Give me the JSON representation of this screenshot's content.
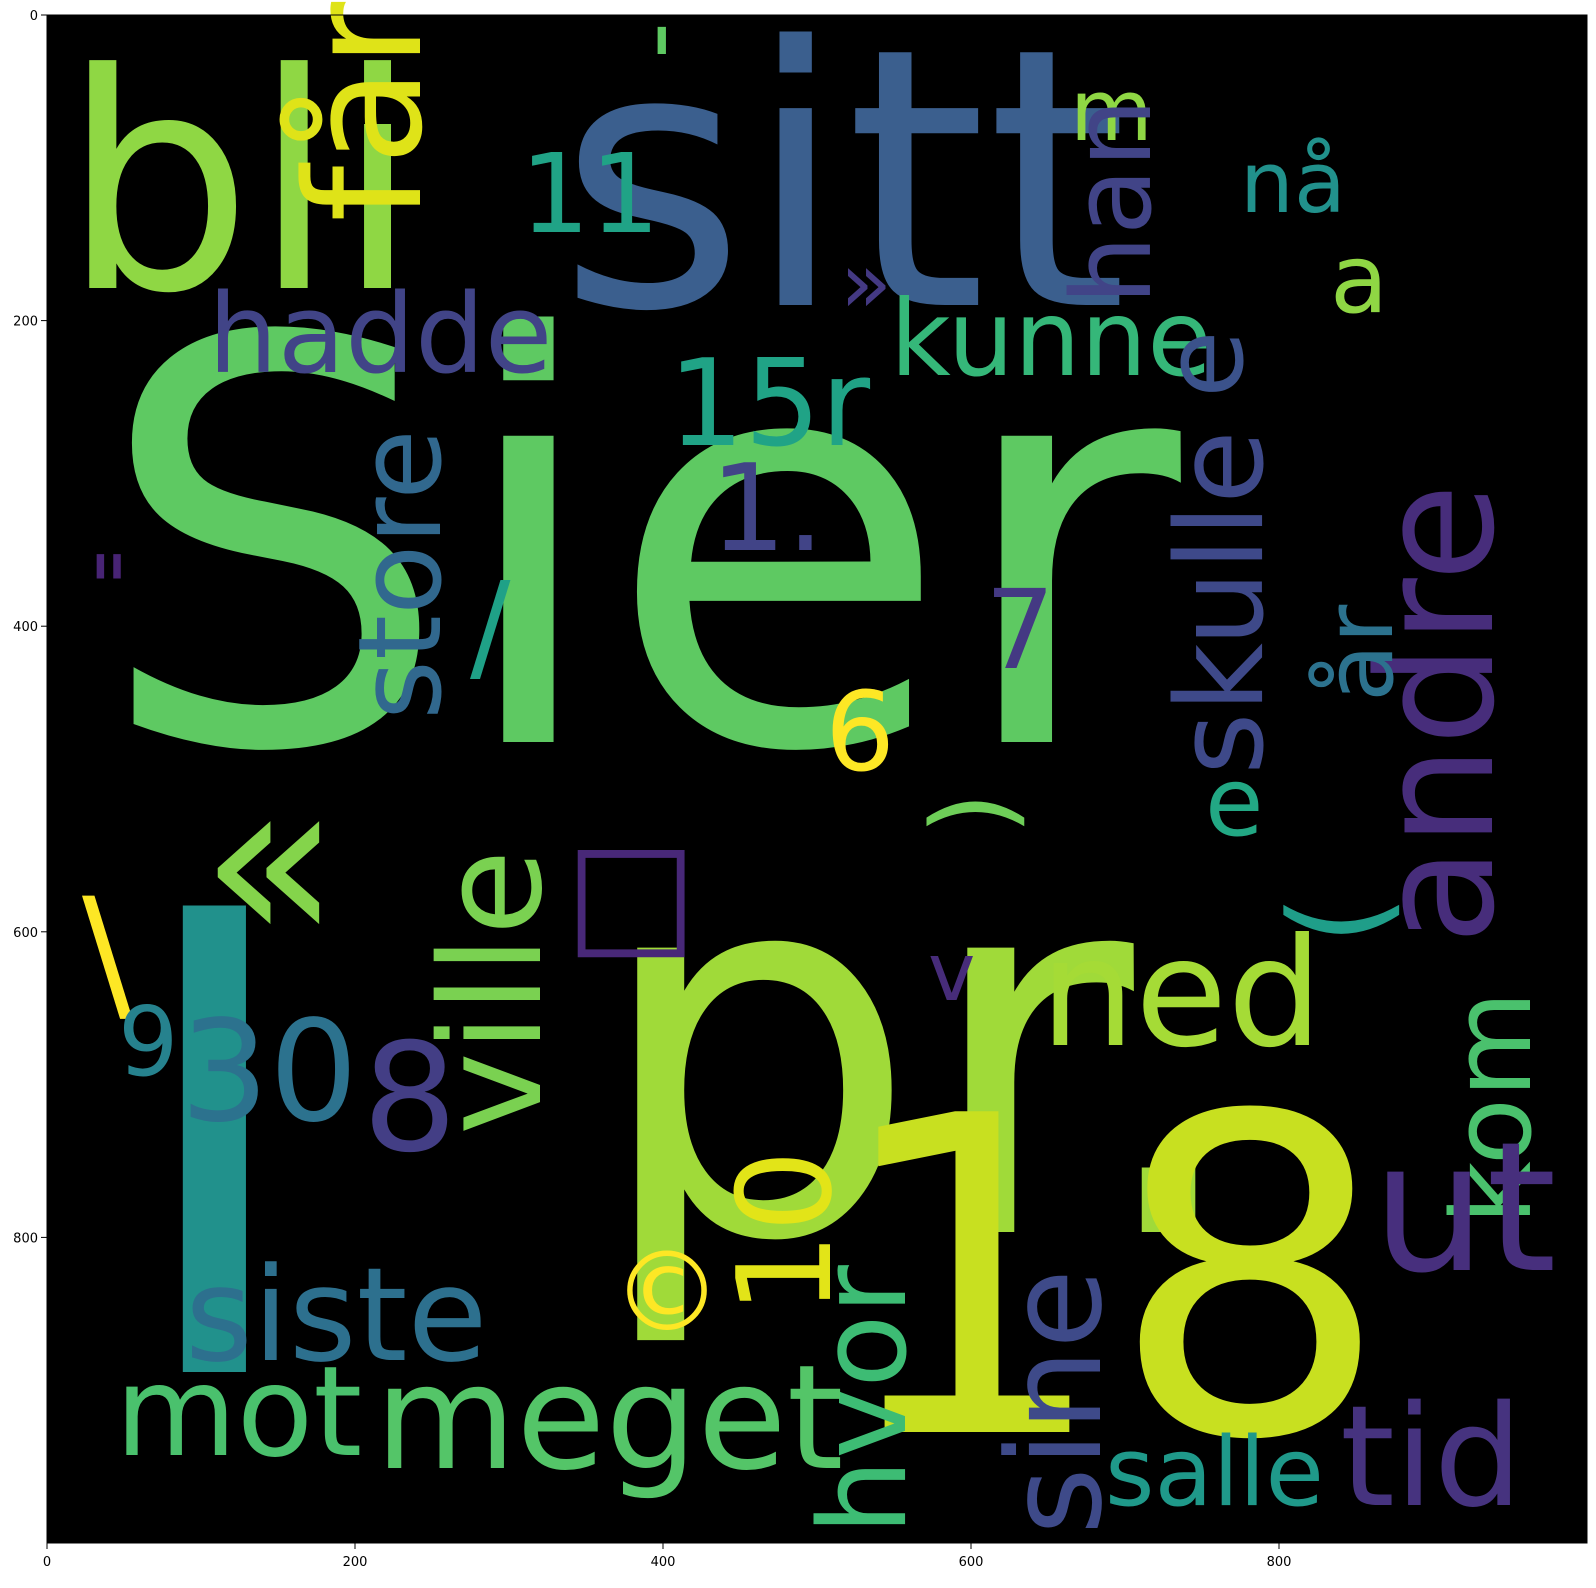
{
  "title": "",
  "x_ticks": [
    "0",
    "200",
    "400",
    "600",
    "800"
  ],
  "y_ticks": [
    "0",
    "200",
    "400",
    "600",
    "800"
  ],
  "words": [
    {
      "text": "Sier",
      "color": "#5ec962"
    },
    {
      "text": "sitt",
      "color": "#3b5f8e"
    },
    {
      "text": "bli",
      "color": "#8fd744"
    },
    {
      "text": "pr.",
      "color": "#a0da39"
    },
    {
      "text": "18",
      "color": "#c8e020"
    },
    {
      "text": "I",
      "color": "#21918c"
    },
    {
      "text": "hadde",
      "color": "#414487"
    },
    {
      "text": "kunne",
      "color": "#35b779"
    },
    {
      "text": "15r",
      "color": "#20a386"
    },
    {
      "text": "11",
      "color": "#20a386"
    },
    {
      "text": "får",
      "color": "#dfe318"
    },
    {
      "text": "'",
      "color": "#5ec962"
    },
    {
      "text": "m",
      "color": "#8fd744"
    },
    {
      "text": "han",
      "color": "#414487"
    },
    {
      "text": "nå",
      "color": "#21918c"
    },
    {
      "text": "a",
      "color": "#8fd744"
    },
    {
      "text": "»",
      "color": "#443983"
    },
    {
      "text": "e",
      "color": "#3b528b"
    },
    {
      "text": "store",
      "color": "#31688e"
    },
    {
      "text": "1.",
      "color": "#414487"
    },
    {
      "text": "skulle",
      "color": "#3e4989"
    },
    {
      "text": "andre",
      "color": "#472d7b"
    },
    {
      "text": "år",
      "color": "#2c728e"
    },
    {
      "text": "\"",
      "color": "#482475"
    },
    {
      "text": "/",
      "color": "#1fa187"
    },
    {
      "text": "7",
      "color": "#443983"
    },
    {
      "text": "6",
      "color": "#fde725"
    },
    {
      "text": ")",
      "color": "#6ece58"
    },
    {
      "text": "e",
      "color": "#22a884"
    },
    {
      "text": "«",
      "color": "#84d44b"
    },
    {
      "text": "(",
      "color": "#1f9e89"
    },
    {
      "text": "\\",
      "color": "#fde725"
    },
    {
      "text": "□",
      "color": "#482878"
    },
    {
      "text": "ville",
      "color": "#7ad151"
    },
    {
      "text": "v",
      "color": "#472c7a"
    },
    {
      "text": "ned",
      "color": "#a5db36"
    },
    {
      "text": "9",
      "color": "#26828e"
    },
    {
      "text": "30",
      "color": "#2c728e"
    },
    {
      "text": "8",
      "color": "#433e85"
    },
    {
      "text": "kom",
      "color": "#4ac16d"
    },
    {
      "text": "10",
      "color": "#e2e418"
    },
    {
      "text": "ut",
      "color": "#472f7d"
    },
    {
      "text": "©",
      "color": "#fde725"
    },
    {
      "text": "siste",
      "color": "#2d708e"
    },
    {
      "text": "sine",
      "color": "#3e4a89"
    },
    {
      "text": "hvor",
      "color": "#3dbc74"
    },
    {
      "text": "mot",
      "color": "#4ac16d"
    },
    {
      "text": "meget",
      "color": "#54c568"
    },
    {
      "text": "tid",
      "color": "#46337f"
    },
    {
      "text": "salle",
      "color": "#1f998a"
    }
  ]
}
